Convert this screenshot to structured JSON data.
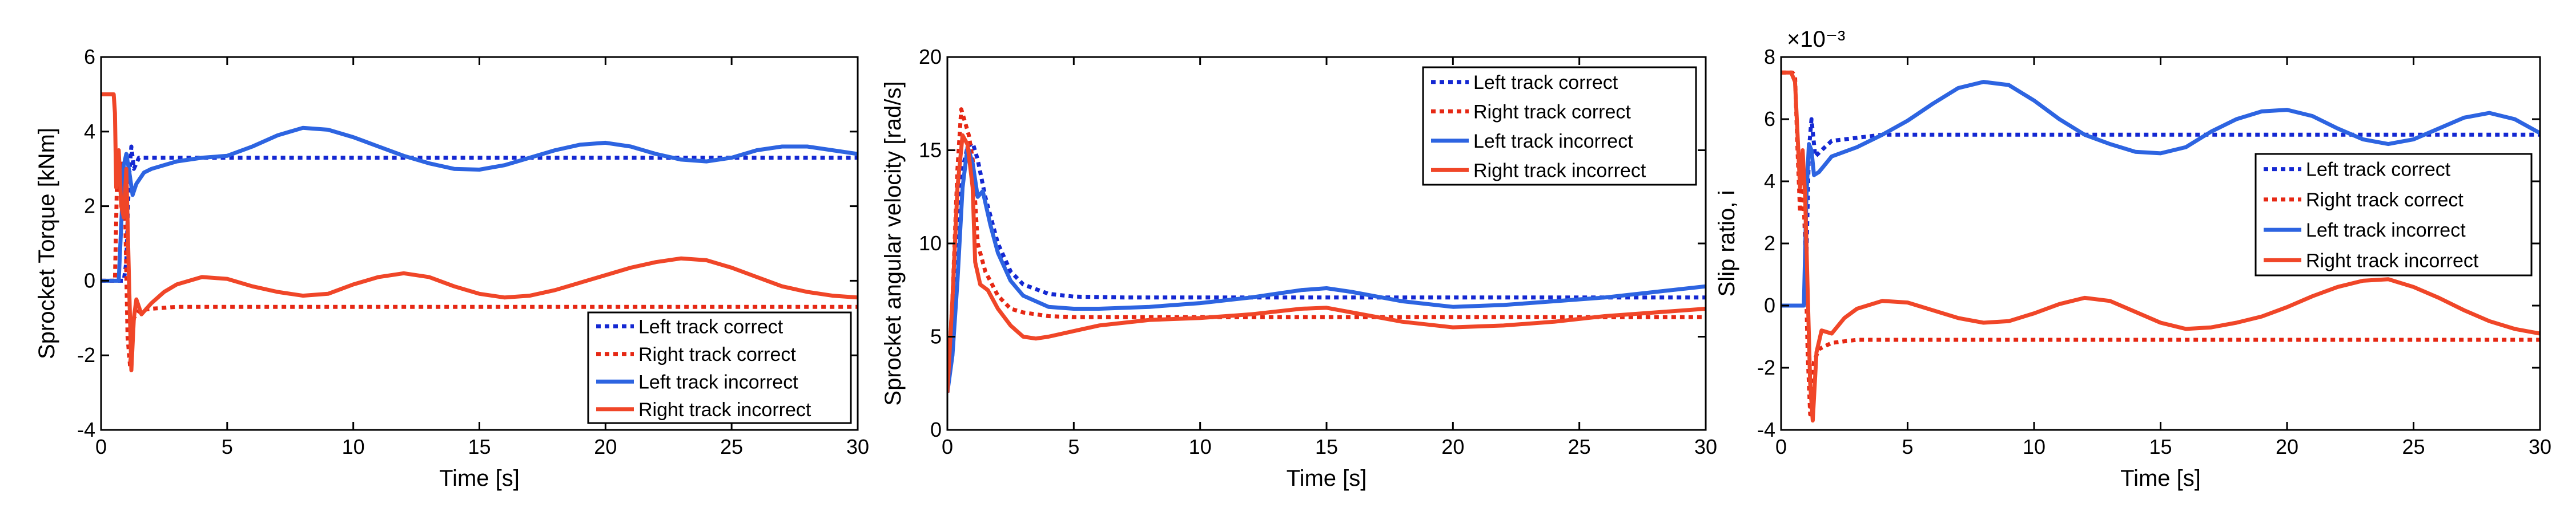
{
  "chart_data": [
    {
      "type": "line",
      "title": "",
      "xlabel": "Time [s]",
      "ylabel": "Sprocket Torque [kNm]",
      "xlim": [
        0,
        30
      ],
      "ylim": [
        -4,
        6
      ],
      "xticks": [
        0,
        5,
        10,
        15,
        20,
        25,
        30
      ],
      "yticks": [
        -4,
        -2,
        0,
        2,
        4,
        6
      ],
      "exponent_label": "",
      "legend_position": "bottom-right",
      "series": [
        {
          "name": "Left track correct",
          "color": "#1428d2",
          "style": "dotted",
          "x": [
            0,
            0.5,
            0.55,
            0.8,
            0.9,
            1.0,
            1.1,
            1.2,
            1.3,
            1.5,
            2,
            3,
            5,
            10,
            15,
            20,
            25,
            30
          ],
          "y": [
            0,
            0,
            0,
            0,
            0,
            0.5,
            2.7,
            3.6,
            3.0,
            3.3,
            3.3,
            3.3,
            3.3,
            3.3,
            3.3,
            3.3,
            3.3,
            3.3
          ]
        },
        {
          "name": "Right track correct",
          "color": "#e62814",
          "style": "dotted",
          "x": [
            0,
            0.45,
            0.55,
            0.65,
            0.75,
            0.85,
            0.95,
            1.05,
            1.15,
            1.3,
            1.5,
            2,
            3,
            5,
            10,
            15,
            20,
            25,
            30
          ],
          "y": [
            0,
            0,
            0,
            3.3,
            2.5,
            3.2,
            2.0,
            -1.5,
            -2.3,
            -1.0,
            -0.8,
            -0.75,
            -0.7,
            -0.7,
            -0.7,
            -0.7,
            -0.7,
            -0.7,
            -0.7
          ]
        },
        {
          "name": "Left track incorrect",
          "color": "#2d64e1",
          "style": "solid",
          "x": [
            0,
            0.5,
            0.55,
            0.7,
            0.8,
            0.9,
            1.0,
            1.1,
            1.25,
            1.4,
            1.7,
            2,
            3,
            4,
            5,
            6,
            7,
            8,
            9,
            10,
            11,
            12,
            13,
            14,
            15,
            16,
            17,
            18,
            19,
            20,
            21,
            22,
            23,
            24,
            25,
            26,
            27,
            28,
            29,
            30
          ],
          "y": [
            0,
            0,
            0,
            0,
            1.5,
            3.1,
            3.4,
            3.0,
            2.3,
            2.6,
            2.9,
            3.0,
            3.2,
            3.3,
            3.35,
            3.6,
            3.9,
            4.1,
            4.05,
            3.85,
            3.6,
            3.35,
            3.15,
            3.0,
            2.98,
            3.1,
            3.3,
            3.5,
            3.65,
            3.7,
            3.6,
            3.4,
            3.25,
            3.2,
            3.3,
            3.5,
            3.6,
            3.6,
            3.5,
            3.4
          ]
        },
        {
          "name": "Right track incorrect",
          "color": "#f04628",
          "style": "solid",
          "x": [
            0,
            0.3,
            0.5,
            0.55,
            0.6,
            0.7,
            0.8,
            0.9,
            1.0,
            1.1,
            1.2,
            1.3,
            1.4,
            1.6,
            2,
            2.5,
            3,
            4,
            5,
            6,
            7,
            8,
            9,
            10,
            11,
            12,
            13,
            14,
            15,
            16,
            17,
            18,
            19,
            20,
            21,
            22,
            23,
            24,
            25,
            26,
            27,
            28,
            29,
            30
          ],
          "y": [
            5,
            5,
            5,
            4.5,
            2.5,
            3.5,
            2.0,
            1.7,
            3.0,
            0.2,
            -2.4,
            -1.0,
            -0.5,
            -0.9,
            -0.6,
            -0.3,
            -0.1,
            0.1,
            0.05,
            -0.15,
            -0.3,
            -0.4,
            -0.35,
            -0.1,
            0.1,
            0.2,
            0.1,
            -0.15,
            -0.35,
            -0.45,
            -0.4,
            -0.25,
            -0.05,
            0.15,
            0.35,
            0.5,
            0.6,
            0.55,
            0.35,
            0.1,
            -0.15,
            -0.3,
            -0.4,
            -0.45
          ]
        }
      ]
    },
    {
      "type": "line",
      "title": "",
      "xlabel": "Time [s]",
      "ylabel": "Sprocket angular velocity [rad/s]",
      "xlim": [
        0,
        30
      ],
      "ylim": [
        0,
        20
      ],
      "xticks": [
        0,
        5,
        10,
        15,
        20,
        25,
        30
      ],
      "yticks": [
        0,
        5,
        10,
        15,
        20
      ],
      "exponent_label": "",
      "legend_position": "top-right",
      "series": [
        {
          "name": "Left track correct",
          "color": "#1428d2",
          "style": "dotted",
          "x": [
            0,
            0.2,
            0.4,
            0.6,
            0.8,
            1.0,
            1.2,
            1.5,
            2,
            2.5,
            3,
            4,
            5,
            7,
            10,
            15,
            20,
            25,
            30
          ],
          "y": [
            2,
            5,
            10,
            14,
            15.2,
            15.4,
            14.5,
            12.5,
            10,
            8.5,
            7.8,
            7.3,
            7.15,
            7.1,
            7.1,
            7.1,
            7.1,
            7.1,
            7.1
          ]
        },
        {
          "name": "Right track correct",
          "color": "#e62814",
          "style": "dotted",
          "x": [
            0,
            0.2,
            0.4,
            0.55,
            0.7,
            0.85,
            1.0,
            1.2,
            1.5,
            2,
            2.5,
            3,
            4,
            5,
            7,
            10,
            15,
            20,
            25,
            30
          ],
          "y": [
            2,
            7,
            14,
            17.2,
            16.5,
            15.8,
            14.5,
            10,
            8.5,
            7.2,
            6.5,
            6.3,
            6.1,
            6.05,
            6.05,
            6.05,
            6.05,
            6.05,
            6.05,
            6.05
          ]
        },
        {
          "name": "Left track incorrect",
          "color": "#2d64e1",
          "style": "solid",
          "x": [
            0,
            0.2,
            0.4,
            0.6,
            0.8,
            1.0,
            1.2,
            1.4,
            1.7,
            2,
            2.5,
            3,
            4,
            5,
            6,
            8,
            10,
            12,
            14,
            15,
            16,
            18,
            20,
            22,
            24,
            26,
            28,
            30
          ],
          "y": [
            2,
            4,
            8,
            13,
            15.2,
            14.3,
            12.5,
            12.8,
            11,
            9.5,
            8,
            7.2,
            6.6,
            6.5,
            6.5,
            6.6,
            6.8,
            7.1,
            7.5,
            7.6,
            7.4,
            6.9,
            6.6,
            6.7,
            6.9,
            7.1,
            7.4,
            7.7
          ]
        },
        {
          "name": "Right track incorrect",
          "color": "#f04628",
          "style": "solid",
          "x": [
            0,
            0.2,
            0.4,
            0.6,
            0.8,
            1.0,
            1.1,
            1.3,
            1.6,
            2,
            2.5,
            3,
            3.5,
            4,
            5,
            6,
            8,
            10,
            12,
            14,
            15,
            16,
            18,
            20,
            22,
            24,
            26,
            28,
            30
          ],
          "y": [
            2,
            7,
            13,
            15.8,
            15.3,
            13.0,
            9.0,
            7.8,
            7.5,
            6.5,
            5.6,
            5.0,
            4.9,
            5.0,
            5.3,
            5.6,
            5.9,
            6.0,
            6.2,
            6.5,
            6.55,
            6.3,
            5.8,
            5.5,
            5.6,
            5.8,
            6.1,
            6.3,
            6.5
          ]
        }
      ]
    },
    {
      "type": "line",
      "title": "",
      "xlabel": "Time [s]",
      "ylabel": "Slip ratio, i",
      "xlim": [
        0,
        30
      ],
      "ylim": [
        -4,
        8
      ],
      "xticks": [
        0,
        5,
        10,
        15,
        20,
        25,
        30
      ],
      "yticks": [
        -4,
        -2,
        0,
        2,
        4,
        6,
        8
      ],
      "exponent_label": "×10⁻³",
      "legend_position": "center-right",
      "series": [
        {
          "name": "Left track correct",
          "color": "#1428d2",
          "style": "dotted",
          "x": [
            0,
            0.5,
            0.6,
            0.8,
            0.9,
            1.0,
            1.1,
            1.2,
            1.35,
            1.6,
            2,
            3,
            4,
            5,
            10,
            15,
            20,
            25,
            30
          ],
          "y": [
            0,
            0,
            0,
            0,
            0,
            1.5,
            5.0,
            6.0,
            4.8,
            5.0,
            5.3,
            5.4,
            5.5,
            5.5,
            5.5,
            5.5,
            5.5,
            5.5,
            5.5
          ]
        },
        {
          "name": "Right track correct",
          "color": "#e62814",
          "style": "dotted",
          "x": [
            0,
            0.45,
            0.55,
            0.65,
            0.75,
            0.85,
            0.95,
            1.05,
            1.15,
            1.3,
            1.5,
            2,
            3,
            5,
            10,
            15,
            20,
            25,
            30
          ],
          "y": [
            7.5,
            7.5,
            7.4,
            5.0,
            3.0,
            4.5,
            2.0,
            -1.5,
            -3.5,
            -1.8,
            -1.4,
            -1.2,
            -1.1,
            -1.1,
            -1.1,
            -1.1,
            -1.1,
            -1.1,
            -1.1
          ]
        },
        {
          "name": "Left track incorrect",
          "color": "#2d64e1",
          "style": "solid",
          "x": [
            0,
            0.5,
            0.6,
            0.8,
            0.9,
            1.0,
            1.1,
            1.2,
            1.3,
            1.5,
            1.8,
            2,
            3,
            4,
            5,
            6,
            7,
            8,
            9,
            10,
            11,
            12,
            13,
            14,
            15,
            16,
            17,
            18,
            19,
            20,
            21,
            22,
            23,
            24,
            25,
            26,
            27,
            28,
            29,
            30
          ],
          "y": [
            0,
            0,
            0,
            0,
            0,
            3.5,
            5.2,
            5.0,
            4.2,
            4.3,
            4.6,
            4.8,
            5.1,
            5.5,
            5.95,
            6.5,
            7.0,
            7.2,
            7.1,
            6.6,
            6.0,
            5.5,
            5.2,
            4.95,
            4.9,
            5.1,
            5.6,
            6.0,
            6.25,
            6.3,
            6.1,
            5.7,
            5.35,
            5.2,
            5.35,
            5.7,
            6.05,
            6.2,
            6.0,
            5.55
          ]
        },
        {
          "name": "Right track incorrect",
          "color": "#f04628",
          "style": "solid",
          "x": [
            0,
            0.4,
            0.55,
            0.65,
            0.75,
            0.85,
            0.95,
            1.05,
            1.15,
            1.25,
            1.4,
            1.6,
            2,
            2.5,
            3,
            4,
            5,
            6,
            7,
            8,
            9,
            10,
            11,
            12,
            13,
            14,
            15,
            16,
            17,
            18,
            19,
            20,
            21,
            22,
            23,
            24,
            25,
            26,
            27,
            28,
            29,
            30
          ],
          "y": [
            7.5,
            7.5,
            7.2,
            5.5,
            3.8,
            5.0,
            3.5,
            0.5,
            -2.5,
            -3.7,
            -1.5,
            -0.8,
            -0.9,
            -0.4,
            -0.1,
            0.15,
            0.1,
            -0.15,
            -0.4,
            -0.55,
            -0.5,
            -0.25,
            0.05,
            0.25,
            0.15,
            -0.2,
            -0.55,
            -0.75,
            -0.7,
            -0.55,
            -0.35,
            -0.05,
            0.3,
            0.6,
            0.8,
            0.85,
            0.6,
            0.25,
            -0.15,
            -0.5,
            -0.75,
            -0.9
          ]
        }
      ]
    }
  ]
}
